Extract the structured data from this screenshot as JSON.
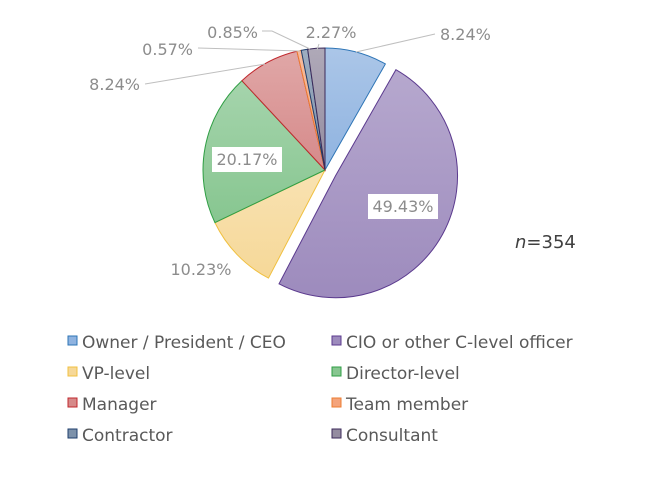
{
  "chart_data": {
    "type": "pie",
    "title": "",
    "start_angle": "top, clockwise",
    "exploded": "CIO or other C-level officer",
    "legend_placement": "bottom",
    "annotation": {
      "italic": "n",
      "text": "=354"
    },
    "slices": [
      {
        "name": "Owner / President / CEO",
        "value": 8.24,
        "label": "8.24%",
        "color": "#8fb3e0",
        "stroke": "#2e75b6"
      },
      {
        "name": "CIO or other C-level officer",
        "value": 49.43,
        "label": "49.43%",
        "color": "#9d8bbd",
        "stroke": "#5b3a8e"
      },
      {
        "name": "VP-level",
        "value": 10.23,
        "label": "10.23%",
        "color": "#f6d898",
        "stroke": "#f0c040"
      },
      {
        "name": "Director-level",
        "value": 20.17,
        "label": "20.17%",
        "color": "#87c690",
        "stroke": "#2f9e44"
      },
      {
        "name": "Manager",
        "value": 8.24,
        "label": "8.24%",
        "color": "#d68a8a",
        "stroke": "#c0282d"
      },
      {
        "name": "Team member",
        "value": 0.57,
        "label": "0.57%",
        "color": "#f4a47c",
        "stroke": "#ed7d31"
      },
      {
        "name": "Contractor",
        "value": 0.85,
        "label": "0.85%",
        "color": "#7d92ab",
        "stroke": "#1f3f6e"
      },
      {
        "name": "Consultant",
        "value": 2.27,
        "label": "2.27%",
        "color": "#948ca0",
        "stroke": "#3b2a5a"
      }
    ]
  }
}
